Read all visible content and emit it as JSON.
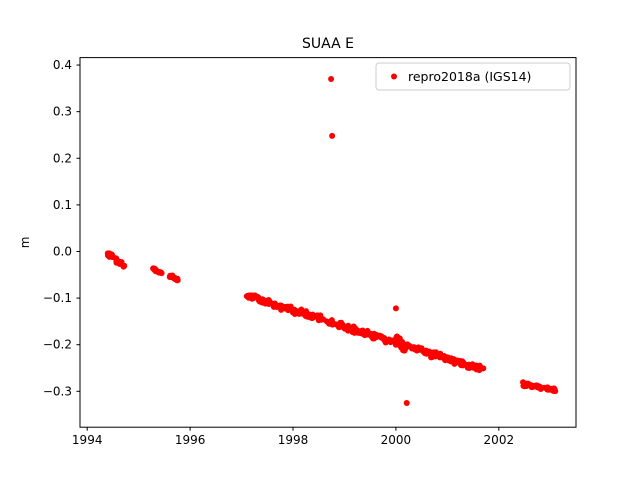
{
  "chart_data": {
    "type": "scatter",
    "title": "SUAA E",
    "xlabel": "",
    "ylabel": "m",
    "xlim": [
      1993.86,
      2003.5
    ],
    "ylim": [
      -0.377,
      0.416
    ],
    "xticks": [
      1994,
      1996,
      1998,
      2000,
      2002
    ],
    "yticks": [
      -0.3,
      -0.2,
      -0.1,
      0.0,
      0.1,
      0.2,
      0.3,
      0.4
    ],
    "grid": false,
    "colors": {
      "points": "#ff0000",
      "axis": "#000000",
      "legend_border": "#cccccc",
      "background": "#ffffff"
    },
    "legend": {
      "position": "upper right",
      "entries": [
        {
          "label": "repro2018a (IGS14)",
          "color": "#ff0000",
          "marker": "dot"
        }
      ]
    },
    "series": [
      {
        "name": "repro2018a (IGS14)",
        "color": "#ff0000",
        "marker": "dot",
        "segments": [
          {
            "x_start": 1994.4,
            "x_end": 1994.52,
            "y_start": -0.006,
            "y_end": -0.01,
            "count": 18,
            "jitter": 0.006
          },
          {
            "x_start": 1994.55,
            "x_end": 1994.72,
            "y_start": -0.018,
            "y_end": -0.034,
            "count": 14,
            "jitter": 0.007
          },
          {
            "x_start": 1995.28,
            "x_end": 1995.45,
            "y_start": -0.038,
            "y_end": -0.046,
            "count": 14,
            "jitter": 0.005
          },
          {
            "x_start": 1995.58,
            "x_end": 1995.78,
            "y_start": -0.05,
            "y_end": -0.062,
            "count": 14,
            "jitter": 0.005
          },
          {
            "x_start": 1997.1,
            "x_end": 1997.24,
            "y_start": -0.095,
            "y_end": -0.099,
            "count": 16,
            "jitter": 0.004
          },
          {
            "x_start": 1997.25,
            "x_end": 2001.7,
            "y_start": -0.1,
            "y_end": -0.255,
            "count": 330,
            "jitter": 0.008
          },
          {
            "x_start": 2000.0,
            "x_end": 2000.18,
            "y_start": -0.186,
            "y_end": -0.208,
            "count": 35,
            "jitter": 0.01
          },
          {
            "x_start": 2002.45,
            "x_end": 2003.1,
            "y_start": -0.284,
            "y_end": -0.297,
            "count": 45,
            "jitter": 0.005
          }
        ],
        "outliers": [
          [
            1998.74,
            0.37
          ],
          [
            1998.76,
            0.248
          ],
          [
            2000.0,
            -0.122
          ],
          [
            2000.21,
            -0.325
          ]
        ]
      }
    ]
  }
}
